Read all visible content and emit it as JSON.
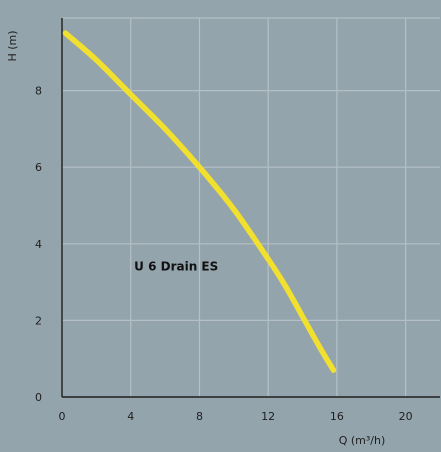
{
  "chart_data": {
    "type": "line",
    "xlabel": "Q (m³/h)",
    "ylabel": "H (m)",
    "xlim": [
      0,
      22
    ],
    "ylim": [
      0,
      10
    ],
    "xticks": [
      0,
      4,
      8,
      12,
      16,
      20
    ],
    "yticks": [
      0,
      2,
      4,
      6,
      8
    ],
    "grid": true,
    "annotation": {
      "text": "U 6 Drain ES",
      "x": 4.2,
      "y": 3.3
    },
    "series": [
      {
        "name": "U 6 Drain ES",
        "color": "#f2e02e",
        "x": [
          0.2,
          2,
          4,
          6,
          8,
          10,
          12,
          13,
          14,
          15,
          15.8
        ],
        "y": [
          9.5,
          8.8,
          7.9,
          7.0,
          6.0,
          4.9,
          3.6,
          2.9,
          2.1,
          1.3,
          0.7
        ]
      }
    ],
    "colors": {
      "background": "#94a4ad",
      "grid": "#b4c0c6",
      "axis": "#1e1e1e"
    }
  }
}
